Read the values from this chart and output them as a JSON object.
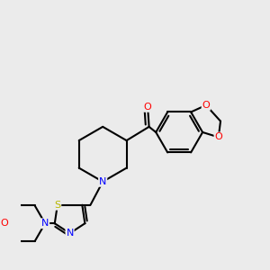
{
  "bg_color": "#ebebeb",
  "bond_color": "#000000",
  "atom_colors": {
    "N": "#0000ff",
    "O": "#ff0000",
    "S": "#b8b800",
    "C": "#000000"
  },
  "line_width": 1.5
}
